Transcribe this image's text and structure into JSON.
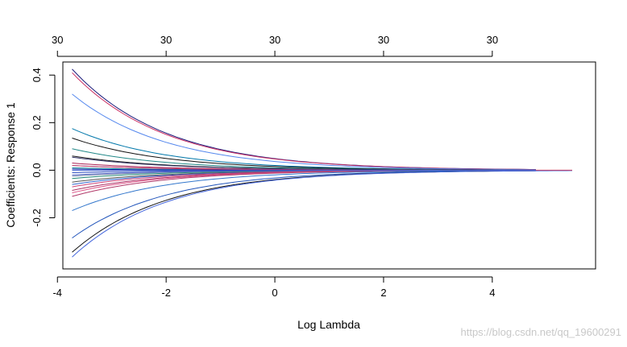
{
  "chart_data": {
    "type": "line",
    "title": "",
    "xlabel": "Log Lambda",
    "ylabel": "Coefficients: Response 1",
    "xlim": [
      -3.9,
      5.9
    ],
    "ylim": [
      -0.415,
      0.455
    ],
    "x_ticks": [
      -4,
      -2,
      0,
      2,
      4
    ],
    "x_tick_labels": [
      "-4",
      "-2",
      "0",
      "2",
      "4"
    ],
    "y_ticks": [
      -0.2,
      0.0,
      0.2,
      0.4
    ],
    "y_tick_labels": [
      "-0.2",
      "0.0",
      "0.2",
      "0.4"
    ],
    "top_axis": {
      "positions": [
        -4,
        -2,
        0,
        2,
        4
      ],
      "labels": [
        "30",
        "30",
        "30",
        "30",
        "30"
      ]
    },
    "grid": false,
    "legend": "none",
    "x_range": [
      -3.73,
      5.47
    ],
    "decay_rate": 0.58,
    "x_end": [
      4.8,
      4.8,
      4.8,
      4.8,
      4.8,
      4.8,
      4.8,
      4.8,
      4.8,
      4.8,
      4.8,
      4.8,
      4.8,
      4.8,
      4.8,
      4.8,
      4.8,
      4.8,
      4.8,
      4.8,
      4.8,
      4.8,
      4.8,
      4.8,
      5.47,
      5.47,
      4.8,
      4.8
    ],
    "series": [
      {
        "color": "#1a1a7a",
        "start": 0.425
      },
      {
        "color": "#cc3366",
        "start": 0.41
      },
      {
        "color": "#5588ee",
        "start": 0.32
      },
      {
        "color": "#0077aa",
        "start": 0.175
      },
      {
        "color": "#111111",
        "start": 0.135
      },
      {
        "color": "#228888",
        "start": 0.09
      },
      {
        "color": "#222222",
        "start": 0.06
      },
      {
        "color": "#333366",
        "start": 0.055
      },
      {
        "color": "#aa2255",
        "start": 0.03
      },
      {
        "color": "#6677dd",
        "start": 0.02
      },
      {
        "color": "#118899",
        "start": 0.01
      },
      {
        "color": "#3355cc",
        "start": 0.0
      },
      {
        "color": "#2244bb",
        "start": -0.01
      },
      {
        "color": "#7788aa",
        "start": -0.025
      },
      {
        "color": "#228877",
        "start": -0.035
      },
      {
        "color": "#555555",
        "start": -0.05
      },
      {
        "color": "#3366cc",
        "start": -0.06
      },
      {
        "color": "#cc4477",
        "start": -0.07
      },
      {
        "color": "#aa3366",
        "start": -0.085
      },
      {
        "color": "#dd5588",
        "start": -0.095
      },
      {
        "color": "#b03a6a",
        "start": -0.11
      },
      {
        "color": "#3377cc",
        "start": -0.17
      },
      {
        "color": "#2255bb",
        "start": -0.285
      },
      {
        "color": "#111111",
        "start": -0.345
      },
      {
        "color": "#4466dd",
        "start": -0.365
      },
      {
        "color": "#cc4466",
        "start": 0.02
      },
      {
        "color": "#2233aa",
        "start": 0.005
      },
      {
        "color": "#5566cc",
        "start": -0.02
      }
    ],
    "colors": {
      "axis": "#000000",
      "watermark": "#c8c8c8"
    }
  },
  "watermark": "https://blog.csdn.net/qq_19600291"
}
